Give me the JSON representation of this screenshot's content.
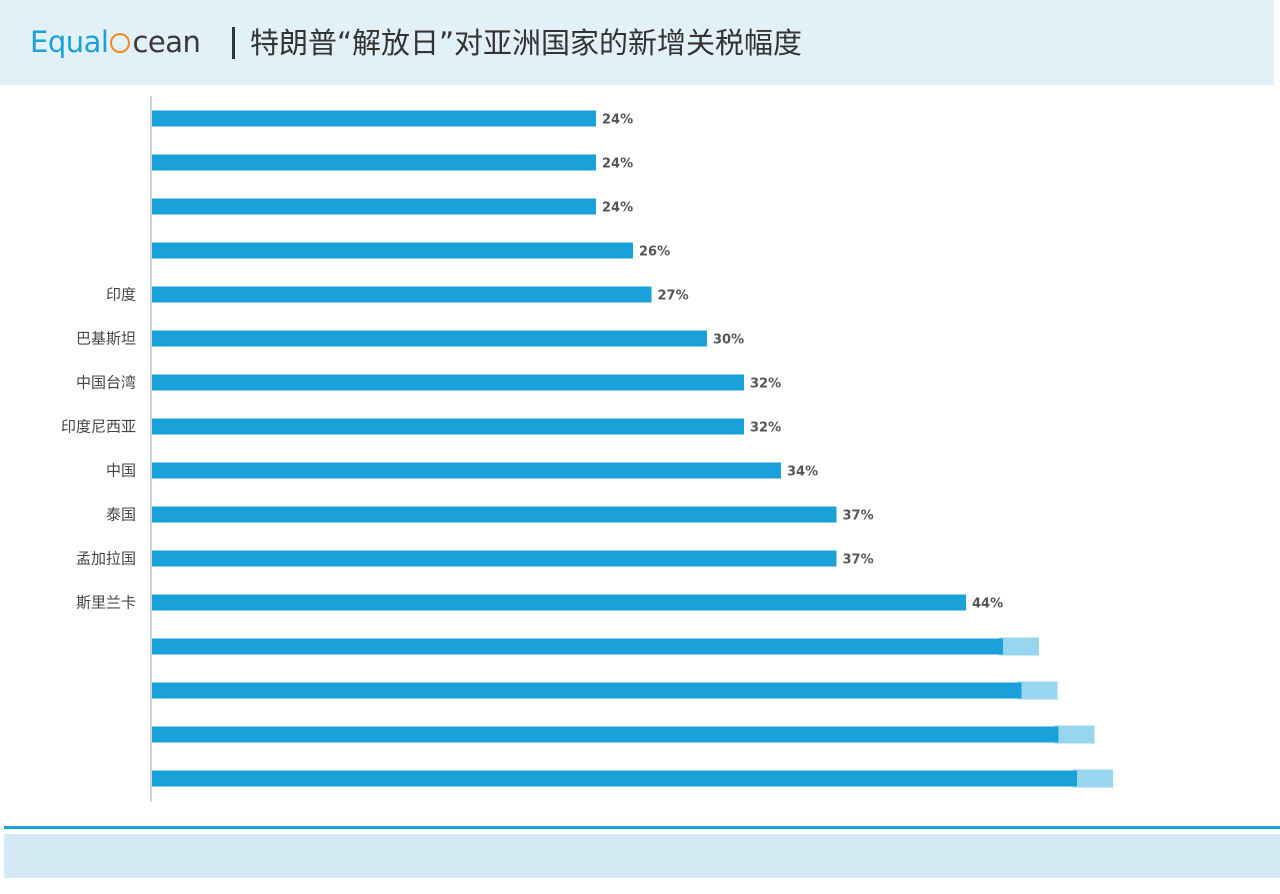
{
  "header": {
    "logo_left": "Equal",
    "logo_right": "cean",
    "title": "特朗普“解放日”对亚洲国家的新增关税幅度"
  },
  "colors": {
    "bar": "#1ba1d9",
    "header_bg": "#e2f0f7",
    "logo_accent": "#f08a24",
    "footer_bg": "#d3e9f3"
  },
  "chart_data": {
    "type": "bar",
    "orientation": "horizontal",
    "title": "特朗普“解放日”对亚洲国家的新增关税幅度",
    "xlim": [
      0,
      55
    ],
    "categories": [
      "",
      "",
      "",
      "",
      "印度",
      "巴基斯坦",
      "中国台湾",
      "印度尼西亚",
      "中国",
      "泰国",
      "孟加拉国",
      "斯里兰卡",
      "",
      "",
      "",
      ""
    ],
    "values": [
      24,
      24,
      24,
      26,
      27,
      30,
      32,
      32,
      34,
      37,
      37,
      44,
      46,
      47,
      49,
      50
    ],
    "data_labels": [
      "24%",
      "24%",
      "24%",
      "26%",
      "27%",
      "30%",
      "32%",
      "32%",
      "34%",
      "37%",
      "37%",
      "44%",
      "",
      "",
      "",
      ""
    ],
    "obscured": [
      false,
      false,
      false,
      false,
      false,
      false,
      false,
      false,
      false,
      false,
      false,
      false,
      true,
      true,
      true,
      true
    ],
    "grid": false,
    "legend": "none"
  }
}
